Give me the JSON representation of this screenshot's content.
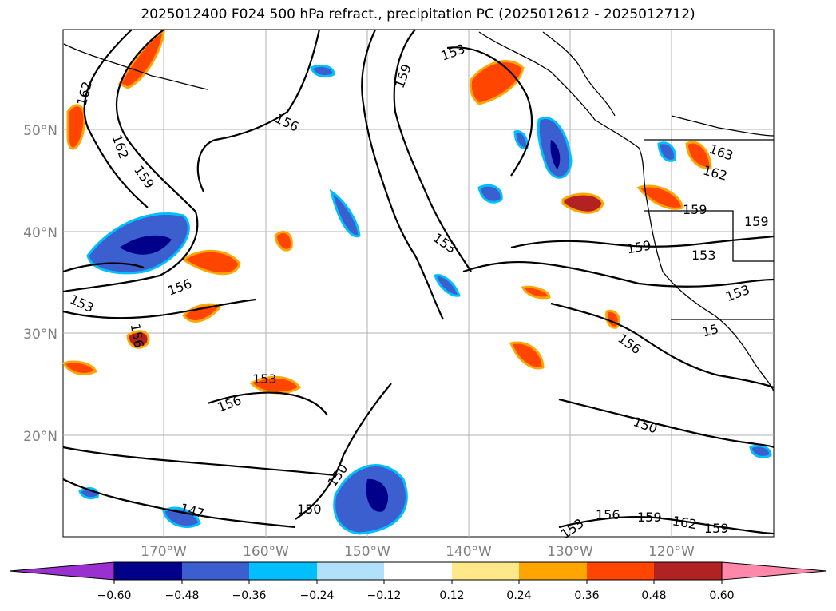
{
  "title": "2025012400 F024 500 hPa refract., precipitation PC (2025012612 - 2025012712)",
  "map": {
    "lat_labels": [
      "50°N",
      "40°N",
      "30°N",
      "20°N"
    ],
    "lon_labels": [
      "170°W",
      "160°W",
      "150°W",
      "140°W",
      "130°W",
      "120°W"
    ],
    "contour_labels": [
      "162",
      "162",
      "159",
      "156",
      "153",
      "156",
      "153",
      "159",
      "156",
      "153",
      "150",
      "150",
      "147",
      "150",
      "153",
      "153",
      "156",
      "159",
      "162",
      "159",
      "156",
      "159",
      "159",
      "153",
      "159",
      "162",
      "163",
      "156",
      "153",
      "15"
    ]
  },
  "colorbar": {
    "colors": [
      "#9b30d0",
      "#00008b",
      "#3b5fcf",
      "#00bfff",
      "#b0e0fa",
      "#ffffff",
      "#ffe88a",
      "#ffa500",
      "#ff4500",
      "#b22222",
      "#ff88aa"
    ],
    "tick_labels": [
      "−0.60",
      "−0.48",
      "−0.36",
      "−0.24",
      "−0.12",
      "0.12",
      "0.24",
      "0.36",
      "0.48",
      "0.60"
    ]
  }
}
